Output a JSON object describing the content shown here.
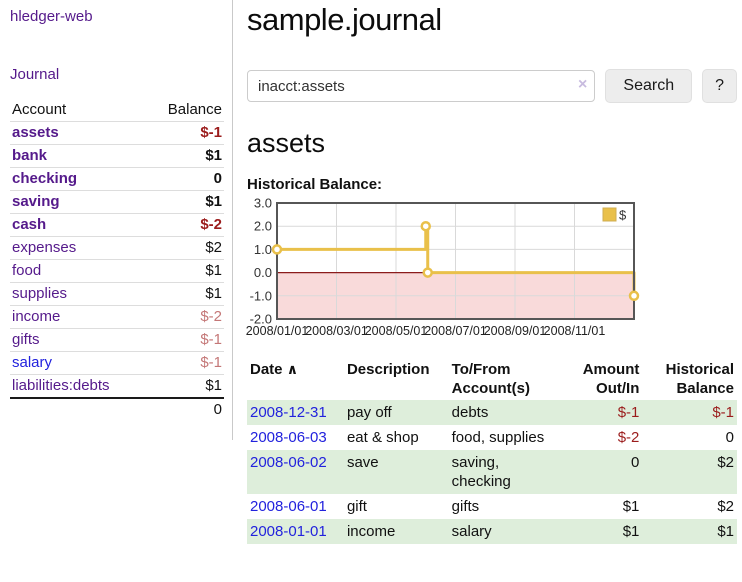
{
  "colors": {
    "link_purple": "#551a8b",
    "link_blue": "#2222dd",
    "negative_strong": "#9b1c1c",
    "negative_soft": "#c47777",
    "row_green": "#deeedb",
    "chart_line": "#e9c04a",
    "chart_negative_bg": "#f9dada",
    "chart_zero_line": "#8b1c1c"
  },
  "sidebar": {
    "brand": "hledger-web",
    "journal_link": "Journal",
    "accounts_table": {
      "headers": {
        "account": "Account",
        "balance": "Balance"
      },
      "rows": [
        {
          "account": "assets",
          "balance": "$-1",
          "depth": 1,
          "bold": true,
          "balance_tone": "negative_strong",
          "link_tone": "link_purple"
        },
        {
          "account": "bank",
          "balance": "$1",
          "depth": 2,
          "bold": true,
          "balance_tone": "normal",
          "link_tone": "link_purple"
        },
        {
          "account": "checking",
          "balance": "0",
          "depth": 3,
          "bold": true,
          "balance_tone": "normal",
          "link_tone": "link_purple"
        },
        {
          "account": "saving",
          "balance": "$1",
          "depth": 3,
          "bold": true,
          "balance_tone": "normal",
          "link_tone": "link_purple"
        },
        {
          "account": "cash",
          "balance": "$-2",
          "depth": 2,
          "bold": true,
          "balance_tone": "negative_strong",
          "link_tone": "link_purple"
        },
        {
          "account": "expenses",
          "balance": "$2",
          "depth": 1,
          "bold": false,
          "balance_tone": "normal",
          "link_tone": "link_purple"
        },
        {
          "account": "food",
          "balance": "$1",
          "depth": 2,
          "bold": false,
          "balance_tone": "normal",
          "link_tone": "link_purple"
        },
        {
          "account": "supplies",
          "balance": "$1",
          "depth": 2,
          "bold": false,
          "balance_tone": "normal",
          "link_tone": "link_purple"
        },
        {
          "account": "income",
          "balance": "$-2",
          "depth": 1,
          "bold": false,
          "balance_tone": "negative_soft",
          "link_tone": "link_purple"
        },
        {
          "account": "gifts",
          "balance": "$-1",
          "depth": 2,
          "bold": false,
          "balance_tone": "negative_soft",
          "link_tone": "link_purple"
        },
        {
          "account": "salary",
          "balance": "$-1",
          "depth": 2,
          "bold": false,
          "balance_tone": "negative_soft",
          "link_tone": "link_blue"
        },
        {
          "account": "liabilities:debts",
          "balance": "$1",
          "depth": 1,
          "bold": false,
          "balance_tone": "normal",
          "link_tone": "link_purple"
        }
      ],
      "total": "0"
    }
  },
  "main": {
    "title": "sample.journal",
    "search": {
      "value": "inacct:assets",
      "clear_icon": "×",
      "search_button": "Search",
      "help_button": "?"
    },
    "account_heading": "assets",
    "chart_label": "Historical Balance:",
    "chart_data": {
      "type": "line",
      "step": true,
      "title": "Historical Balance",
      "series": [
        {
          "name": "$",
          "points": [
            [
              "2008-01-01",
              1
            ],
            [
              "2008-06-01",
              2
            ],
            [
              "2008-06-03",
              0
            ],
            [
              "2008-12-31",
              -1
            ]
          ]
        }
      ],
      "ylim": [
        -2,
        3
      ],
      "yticks": [
        "3.0",
        "2.0",
        "1.0",
        "0.0",
        "-1.0",
        "-2.0"
      ],
      "xticks": [
        "2008/01/01",
        "2008/03/01",
        "2008/05/01",
        "2008/07/01",
        "2008/09/01",
        "2008/11/01"
      ],
      "x_months_span": 12,
      "legend_position": "top-right",
      "negative_region_shaded": true,
      "grid": true
    },
    "register": {
      "headers": {
        "date": "Date",
        "sort_icon": "∧",
        "description": "Description",
        "to_from": [
          "To/From",
          "Account(s)"
        ],
        "amount": [
          "Amount",
          "Out/In"
        ],
        "historical": [
          "Historical",
          "Balance"
        ]
      },
      "rows": [
        {
          "date": "2008-12-31",
          "description": "pay off",
          "accounts": [
            "debts"
          ],
          "amount": "$-1",
          "amount_tone": "negative_strong",
          "balance": "$-1",
          "balance_tone": "negative_strong",
          "shaded": true
        },
        {
          "date": "2008-06-03",
          "description": "eat & shop",
          "accounts": [
            "food, supplies"
          ],
          "amount": "$-2",
          "amount_tone": "negative_strong",
          "balance": "0",
          "balance_tone": "normal",
          "shaded": false
        },
        {
          "date": "2008-06-02",
          "description": "save",
          "accounts": [
            "saving,",
            "checking"
          ],
          "amount": "0",
          "amount_tone": "normal",
          "balance": "$2",
          "balance_tone": "normal",
          "shaded": true
        },
        {
          "date": "2008-06-01",
          "description": "gift",
          "accounts": [
            "gifts"
          ],
          "amount": "$1",
          "amount_tone": "normal",
          "balance": "$2",
          "balance_tone": "normal",
          "shaded": false
        },
        {
          "date": "2008-01-01",
          "description": "income",
          "accounts": [
            "salary"
          ],
          "amount": "$1",
          "amount_tone": "normal",
          "balance": "$1",
          "balance_tone": "normal",
          "shaded": true
        }
      ]
    }
  }
}
